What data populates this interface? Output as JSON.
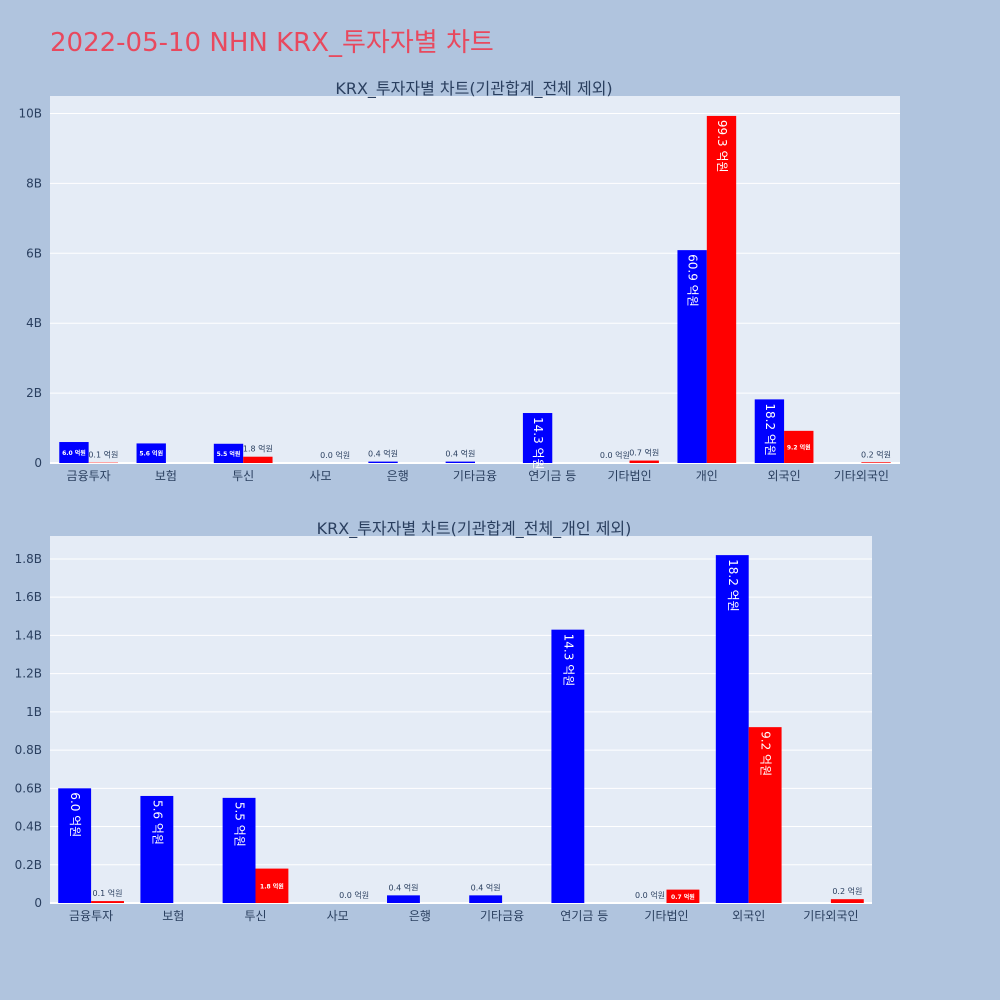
{
  "page": {
    "title": "2022-05-10 NHN KRX_투자자별 차트"
  },
  "chart_data": [
    {
      "type": "bar",
      "title": "KRX_투자자별 차트(기관합계_전체 제외)",
      "categories": [
        "금융투자",
        "보험",
        "투신",
        "사모",
        "은행",
        "기타금융",
        "연기금 등",
        "기타법인",
        "개인",
        "외국인",
        "기타외국인"
      ],
      "yticks": [
        "0",
        "2B",
        "4B",
        "6B",
        "8B",
        "10B"
      ],
      "ylim": [
        0,
        10.5
      ],
      "unit": "B",
      "colors": {
        "buy": "#0000ff",
        "sell": "#ff0000"
      },
      "series": [
        {
          "name": "buy",
          "values": [
            0.6,
            0.56,
            0.55,
            0,
            0.04,
            0.04,
            1.43,
            0,
            6.09,
            1.82,
            0
          ],
          "labels": [
            "6.0 억원",
            "5.6 억원",
            "5.5 억원",
            "",
            "0.4 억원",
            "0.4 억원",
            "14.3 억원",
            "0.0 억원",
            "60.9 억원",
            "18.2 억원",
            ""
          ]
        },
        {
          "name": "sell",
          "values": [
            0.01,
            0,
            0.18,
            0,
            0,
            0,
            0,
            0.07,
            9.93,
            0.92,
            0.02
          ],
          "labels": [
            "0.1 억원",
            "",
            "1.8 억원",
            "0.0 억원",
            "",
            "",
            "",
            "0.7 억원",
            "99.3 억원",
            "9.2 억원",
            "0.2 억원"
          ]
        }
      ]
    },
    {
      "type": "bar",
      "title": "KRX_투자자별 차트(기관합계_전체_개인 제외)",
      "categories": [
        "금융투자",
        "보험",
        "투신",
        "사모",
        "은행",
        "기타금융",
        "연기금 등",
        "기타법인",
        "외국인",
        "기타외국인"
      ],
      "yticks": [
        "0",
        "0.2B",
        "0.4B",
        "0.6B",
        "0.8B",
        "1B",
        "1.2B",
        "1.4B",
        "1.6B",
        "1.8B"
      ],
      "ylim": [
        0,
        1.92
      ],
      "unit": "B",
      "colors": {
        "buy": "#0000ff",
        "sell": "#ff0000"
      },
      "series": [
        {
          "name": "buy",
          "values": [
            0.6,
            0.56,
            0.55,
            0,
            0.04,
            0.04,
            1.43,
            0,
            1.82,
            0
          ],
          "labels": [
            "6.0 억원",
            "5.6 억원",
            "5.5 억원",
            "",
            "0.4 억원",
            "0.4 억원",
            "14.3 억원",
            "0.0 억원",
            "18.2 억원",
            ""
          ]
        },
        {
          "name": "sell",
          "values": [
            0.01,
            0,
            0.18,
            0,
            0,
            0,
            0,
            0.07,
            0.92,
            0.02
          ],
          "labels": [
            "0.1 억원",
            "",
            "1.8 억원",
            "0.0 억원",
            "",
            "",
            "",
            "0.7 억원",
            "9.2 억원",
            "0.2 억원"
          ]
        }
      ]
    }
  ]
}
